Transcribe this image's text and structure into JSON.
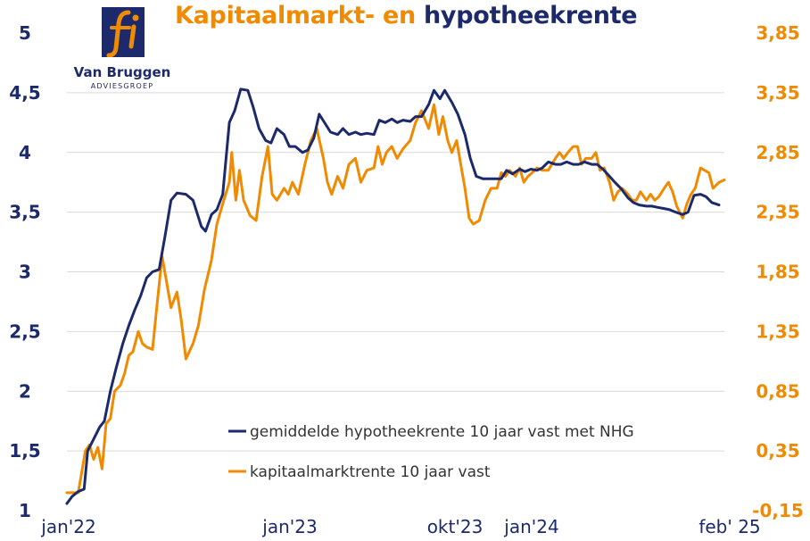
{
  "title": {
    "part1": "Kapitaalmarkt- en",
    "part2": "hypotheekrente"
  },
  "logo": {
    "glyph": "fi",
    "name": "Van Bruggen",
    "subtitle": "ADVIESGROEP",
    "icon": "van-bruggen-logo-icon"
  },
  "colors": {
    "hypotheek": "#1c2a6c",
    "kapitaal": "#f08a00",
    "grid": "#d9d9d9"
  },
  "chart_data": {
    "type": "line",
    "title": "Kapitaalmarkt- en hypotheekrente",
    "grid": true,
    "legend_position": "bottom-right",
    "y_left": {
      "range": [
        1,
        5
      ],
      "ticks": [
        1,
        1.5,
        2,
        2.5,
        3,
        3.5,
        4,
        4.5,
        5
      ],
      "tick_labels": [
        "1",
        "1,5",
        "2",
        "2,5",
        "3",
        "3,5",
        "4",
        "4,5",
        "5"
      ]
    },
    "y_right": {
      "range": [
        -0.15,
        3.85
      ],
      "ticks": [
        -0.15,
        0.35,
        0.85,
        1.35,
        1.85,
        2.35,
        2.85,
        3.35,
        3.85
      ],
      "tick_labels": [
        "-0,15",
        "0,35",
        "0,85",
        "1,35",
        "1,85",
        "2,35",
        "2,85",
        "3,35",
        "3,85"
      ]
    },
    "x": {
      "range": [
        "2022-01",
        "2025-02"
      ],
      "tick_labels": [
        {
          "label": "jan'22",
          "date": "2022-01"
        },
        {
          "label": "jan'23",
          "date": "2023-01"
        },
        {
          "label": "okt'23",
          "date": "2023-10"
        },
        {
          "label": "jan'24",
          "date": "2024-01"
        },
        {
          "label": "feb' 25",
          "date": "2025-02"
        }
      ]
    },
    "series": [
      {
        "name": "gemiddelde hypotheekrente 10 jaar vast met NHG",
        "axis": "left",
        "points": [
          [
            "2022-01-01",
            1.06
          ],
          [
            "2022-01-10",
            1.12
          ],
          [
            "2022-01-20",
            1.16
          ],
          [
            "2022-01-30",
            1.18
          ],
          [
            "2022-02-05",
            1.5
          ],
          [
            "2022-02-15",
            1.6
          ],
          [
            "2022-02-25",
            1.7
          ],
          [
            "2022-03-05",
            1.75
          ],
          [
            "2022-03-15",
            2.0
          ],
          [
            "2022-03-25",
            2.2
          ],
          [
            "2022-04-05",
            2.4
          ],
          [
            "2022-04-15",
            2.55
          ],
          [
            "2022-04-25",
            2.68
          ],
          [
            "2022-05-05",
            2.8
          ],
          [
            "2022-05-15",
            2.95
          ],
          [
            "2022-05-25",
            3.0
          ],
          [
            "2022-06-05",
            3.02
          ],
          [
            "2022-06-15",
            3.3
          ],
          [
            "2022-06-25",
            3.6
          ],
          [
            "2022-07-05",
            3.66
          ],
          [
            "2022-07-20",
            3.65
          ],
          [
            "2022-08-01",
            3.6
          ],
          [
            "2022-08-15",
            3.38
          ],
          [
            "2022-08-22",
            3.34
          ],
          [
            "2022-09-01",
            3.48
          ],
          [
            "2022-09-10",
            3.52
          ],
          [
            "2022-09-20",
            3.65
          ],
          [
            "2022-10-01",
            4.25
          ],
          [
            "2022-10-10",
            4.35
          ],
          [
            "2022-10-20",
            4.53
          ],
          [
            "2022-11-01",
            4.52
          ],
          [
            "2022-11-10",
            4.38
          ],
          [
            "2022-11-20",
            4.2
          ],
          [
            "2022-12-01",
            4.1
          ],
          [
            "2022-12-10",
            4.08
          ],
          [
            "2022-12-20",
            4.2
          ],
          [
            "2023-01-01",
            4.15
          ],
          [
            "2023-01-10",
            4.05
          ],
          [
            "2023-01-20",
            4.05
          ],
          [
            "2023-02-01",
            4.0
          ],
          [
            "2023-02-10",
            4.02
          ],
          [
            "2023-02-20",
            4.12
          ],
          [
            "2023-03-01",
            4.32
          ],
          [
            "2023-03-10",
            4.25
          ],
          [
            "2023-03-20",
            4.17
          ],
          [
            "2023-04-01",
            4.15
          ],
          [
            "2023-04-10",
            4.2
          ],
          [
            "2023-04-20",
            4.15
          ],
          [
            "2023-05-01",
            4.17
          ],
          [
            "2023-05-10",
            4.15
          ],
          [
            "2023-05-20",
            4.16
          ],
          [
            "2023-06-01",
            4.15
          ],
          [
            "2023-06-10",
            4.27
          ],
          [
            "2023-06-20",
            4.25
          ],
          [
            "2023-07-01",
            4.28
          ],
          [
            "2023-07-10",
            4.25
          ],
          [
            "2023-07-20",
            4.27
          ],
          [
            "2023-08-01",
            4.26
          ],
          [
            "2023-08-10",
            4.3
          ],
          [
            "2023-08-20",
            4.3
          ],
          [
            "2023-09-01",
            4.4
          ],
          [
            "2023-09-10",
            4.52
          ],
          [
            "2023-09-20",
            4.45
          ],
          [
            "2023-09-28",
            4.52
          ],
          [
            "2023-10-10",
            4.42
          ],
          [
            "2023-10-20",
            4.32
          ],
          [
            "2023-11-01",
            4.15
          ],
          [
            "2023-11-10",
            3.95
          ],
          [
            "2023-11-20",
            3.8
          ],
          [
            "2023-12-01",
            3.78
          ],
          [
            "2023-12-10",
            3.78
          ],
          [
            "2023-12-20",
            3.78
          ],
          [
            "2024-01-01",
            3.78
          ],
          [
            "2024-01-10",
            3.85
          ],
          [
            "2024-01-20",
            3.82
          ],
          [
            "2024-02-01",
            3.86
          ],
          [
            "2024-02-10",
            3.84
          ],
          [
            "2024-02-20",
            3.86
          ],
          [
            "2024-03-01",
            3.85
          ],
          [
            "2024-03-10",
            3.87
          ],
          [
            "2024-03-20",
            3.92
          ],
          [
            "2024-04-01",
            3.9
          ],
          [
            "2024-04-10",
            3.9
          ],
          [
            "2024-04-20",
            3.92
          ],
          [
            "2024-05-01",
            3.9
          ],
          [
            "2024-05-10",
            3.9
          ],
          [
            "2024-05-20",
            3.92
          ],
          [
            "2024-06-01",
            3.9
          ],
          [
            "2024-06-10",
            3.9
          ],
          [
            "2024-06-20",
            3.86
          ],
          [
            "2024-07-01",
            3.8
          ],
          [
            "2024-07-10",
            3.75
          ],
          [
            "2024-07-20",
            3.7
          ],
          [
            "2024-08-01",
            3.62
          ],
          [
            "2024-08-10",
            3.58
          ],
          [
            "2024-08-20",
            3.56
          ],
          [
            "2024-09-01",
            3.55
          ],
          [
            "2024-09-10",
            3.55
          ],
          [
            "2024-09-20",
            3.54
          ],
          [
            "2024-10-01",
            3.53
          ],
          [
            "2024-10-10",
            3.52
          ],
          [
            "2024-10-20",
            3.5
          ],
          [
            "2024-11-01",
            3.48
          ],
          [
            "2024-11-10",
            3.5
          ],
          [
            "2024-11-20",
            3.64
          ],
          [
            "2024-12-01",
            3.65
          ],
          [
            "2024-12-10",
            3.63
          ],
          [
            "2024-12-20",
            3.58
          ],
          [
            "2025-01-01",
            3.56
          ]
        ]
      },
      {
        "name": "kapitaalmarktrente 10 jaar vast",
        "axis": "right",
        "points": [
          [
            "2022-01-01",
            0.0
          ],
          [
            "2022-01-10",
            0.0
          ],
          [
            "2022-01-20",
            0.0
          ],
          [
            "2022-02-01",
            0.35
          ],
          [
            "2022-02-08",
            0.4
          ],
          [
            "2022-02-15",
            0.28
          ],
          [
            "2022-02-22",
            0.38
          ],
          [
            "2022-03-01",
            0.2
          ],
          [
            "2022-03-08",
            0.58
          ],
          [
            "2022-03-15",
            0.62
          ],
          [
            "2022-03-22",
            0.85
          ],
          [
            "2022-04-01",
            0.9
          ],
          [
            "2022-04-08",
            1.0
          ],
          [
            "2022-04-15",
            1.15
          ],
          [
            "2022-04-22",
            1.18
          ],
          [
            "2022-05-01",
            1.35
          ],
          [
            "2022-05-08",
            1.25
          ],
          [
            "2022-05-15",
            1.22
          ],
          [
            "2022-05-25",
            1.2
          ],
          [
            "2022-06-01",
            1.55
          ],
          [
            "2022-06-10",
            1.98
          ],
          [
            "2022-06-18",
            1.75
          ],
          [
            "2022-06-25",
            1.55
          ],
          [
            "2022-07-05",
            1.68
          ],
          [
            "2022-07-12",
            1.45
          ],
          [
            "2022-07-20",
            1.12
          ],
          [
            "2022-08-01",
            1.25
          ],
          [
            "2022-08-10",
            1.4
          ],
          [
            "2022-08-20",
            1.7
          ],
          [
            "2022-09-01",
            1.95
          ],
          [
            "2022-09-10",
            2.25
          ],
          [
            "2022-09-20",
            2.42
          ],
          [
            "2022-10-01",
            2.6
          ],
          [
            "2022-10-05",
            2.85
          ],
          [
            "2022-10-12",
            2.45
          ],
          [
            "2022-10-18",
            2.7
          ],
          [
            "2022-10-25",
            2.45
          ],
          [
            "2022-11-05",
            2.32
          ],
          [
            "2022-11-15",
            2.28
          ],
          [
            "2022-11-25",
            2.65
          ],
          [
            "2022-12-05",
            2.9
          ],
          [
            "2022-12-12",
            2.5
          ],
          [
            "2022-12-20",
            2.45
          ],
          [
            "2023-01-01",
            2.55
          ],
          [
            "2023-01-08",
            2.5
          ],
          [
            "2023-01-15",
            2.6
          ],
          [
            "2023-01-25",
            2.5
          ],
          [
            "2023-02-05",
            2.75
          ],
          [
            "2023-02-15",
            2.95
          ],
          [
            "2023-02-25",
            3.05
          ],
          [
            "2023-03-08",
            2.8
          ],
          [
            "2023-03-15",
            2.6
          ],
          [
            "2023-03-22",
            2.5
          ],
          [
            "2023-04-01",
            2.65
          ],
          [
            "2023-04-10",
            2.55
          ],
          [
            "2023-04-20",
            2.75
          ],
          [
            "2023-05-01",
            2.8
          ],
          [
            "2023-05-10",
            2.6
          ],
          [
            "2023-05-20",
            2.7
          ],
          [
            "2023-06-01",
            2.72
          ],
          [
            "2023-06-08",
            2.9
          ],
          [
            "2023-06-15",
            2.75
          ],
          [
            "2023-06-22",
            2.85
          ],
          [
            "2023-07-01",
            2.9
          ],
          [
            "2023-07-10",
            2.8
          ],
          [
            "2023-07-20",
            2.88
          ],
          [
            "2023-08-01",
            2.95
          ],
          [
            "2023-08-10",
            3.1
          ],
          [
            "2023-08-20",
            3.2
          ],
          [
            "2023-09-01",
            3.05
          ],
          [
            "2023-09-10",
            3.25
          ],
          [
            "2023-09-18",
            3.0
          ],
          [
            "2023-09-25",
            3.15
          ],
          [
            "2023-10-03",
            2.95
          ],
          [
            "2023-10-10",
            2.85
          ],
          [
            "2023-10-18",
            2.95
          ],
          [
            "2023-10-25",
            2.75
          ],
          [
            "2023-11-01",
            2.55
          ],
          [
            "2023-11-08",
            2.3
          ],
          [
            "2023-11-15",
            2.25
          ],
          [
            "2023-11-25",
            2.28
          ],
          [
            "2023-12-05",
            2.45
          ],
          [
            "2023-12-15",
            2.55
          ],
          [
            "2023-12-25",
            2.55
          ],
          [
            "2024-01-01",
            2.68
          ],
          [
            "2024-01-08",
            2.65
          ],
          [
            "2024-01-15",
            2.7
          ],
          [
            "2024-01-25",
            2.65
          ],
          [
            "2024-02-01",
            2.72
          ],
          [
            "2024-02-08",
            2.6
          ],
          [
            "2024-02-15",
            2.65
          ],
          [
            "2024-02-22",
            2.68
          ],
          [
            "2024-03-01",
            2.72
          ],
          [
            "2024-03-10",
            2.7
          ],
          [
            "2024-03-20",
            2.7
          ],
          [
            "2024-04-01",
            2.8
          ],
          [
            "2024-04-08",
            2.85
          ],
          [
            "2024-04-15",
            2.8
          ],
          [
            "2024-04-22",
            2.85
          ],
          [
            "2024-05-01",
            2.9
          ],
          [
            "2024-05-08",
            2.9
          ],
          [
            "2024-05-15",
            2.75
          ],
          [
            "2024-05-22",
            2.8
          ],
          [
            "2024-06-01",
            2.8
          ],
          [
            "2024-06-08",
            2.85
          ],
          [
            "2024-06-15",
            2.7
          ],
          [
            "2024-06-22",
            2.72
          ],
          [
            "2024-07-01",
            2.6
          ],
          [
            "2024-07-08",
            2.45
          ],
          [
            "2024-07-15",
            2.52
          ],
          [
            "2024-07-22",
            2.55
          ],
          [
            "2024-08-01",
            2.5
          ],
          [
            "2024-08-08",
            2.45
          ],
          [
            "2024-08-15",
            2.45
          ],
          [
            "2024-08-22",
            2.52
          ],
          [
            "2024-09-01",
            2.45
          ],
          [
            "2024-09-08",
            2.5
          ],
          [
            "2024-09-15",
            2.45
          ],
          [
            "2024-09-22",
            2.48
          ],
          [
            "2024-10-01",
            2.55
          ],
          [
            "2024-10-08",
            2.6
          ],
          [
            "2024-10-15",
            2.52
          ],
          [
            "2024-10-22",
            2.4
          ],
          [
            "2024-11-01",
            2.3
          ],
          [
            "2024-11-08",
            2.42
          ],
          [
            "2024-11-15",
            2.5
          ],
          [
            "2024-11-22",
            2.55
          ],
          [
            "2024-12-01",
            2.72
          ],
          [
            "2024-12-08",
            2.7
          ],
          [
            "2024-12-15",
            2.68
          ],
          [
            "2024-12-22",
            2.55
          ],
          [
            "2025-01-01",
            2.6
          ],
          [
            "2025-01-10",
            2.62
          ]
        ]
      }
    ]
  }
}
